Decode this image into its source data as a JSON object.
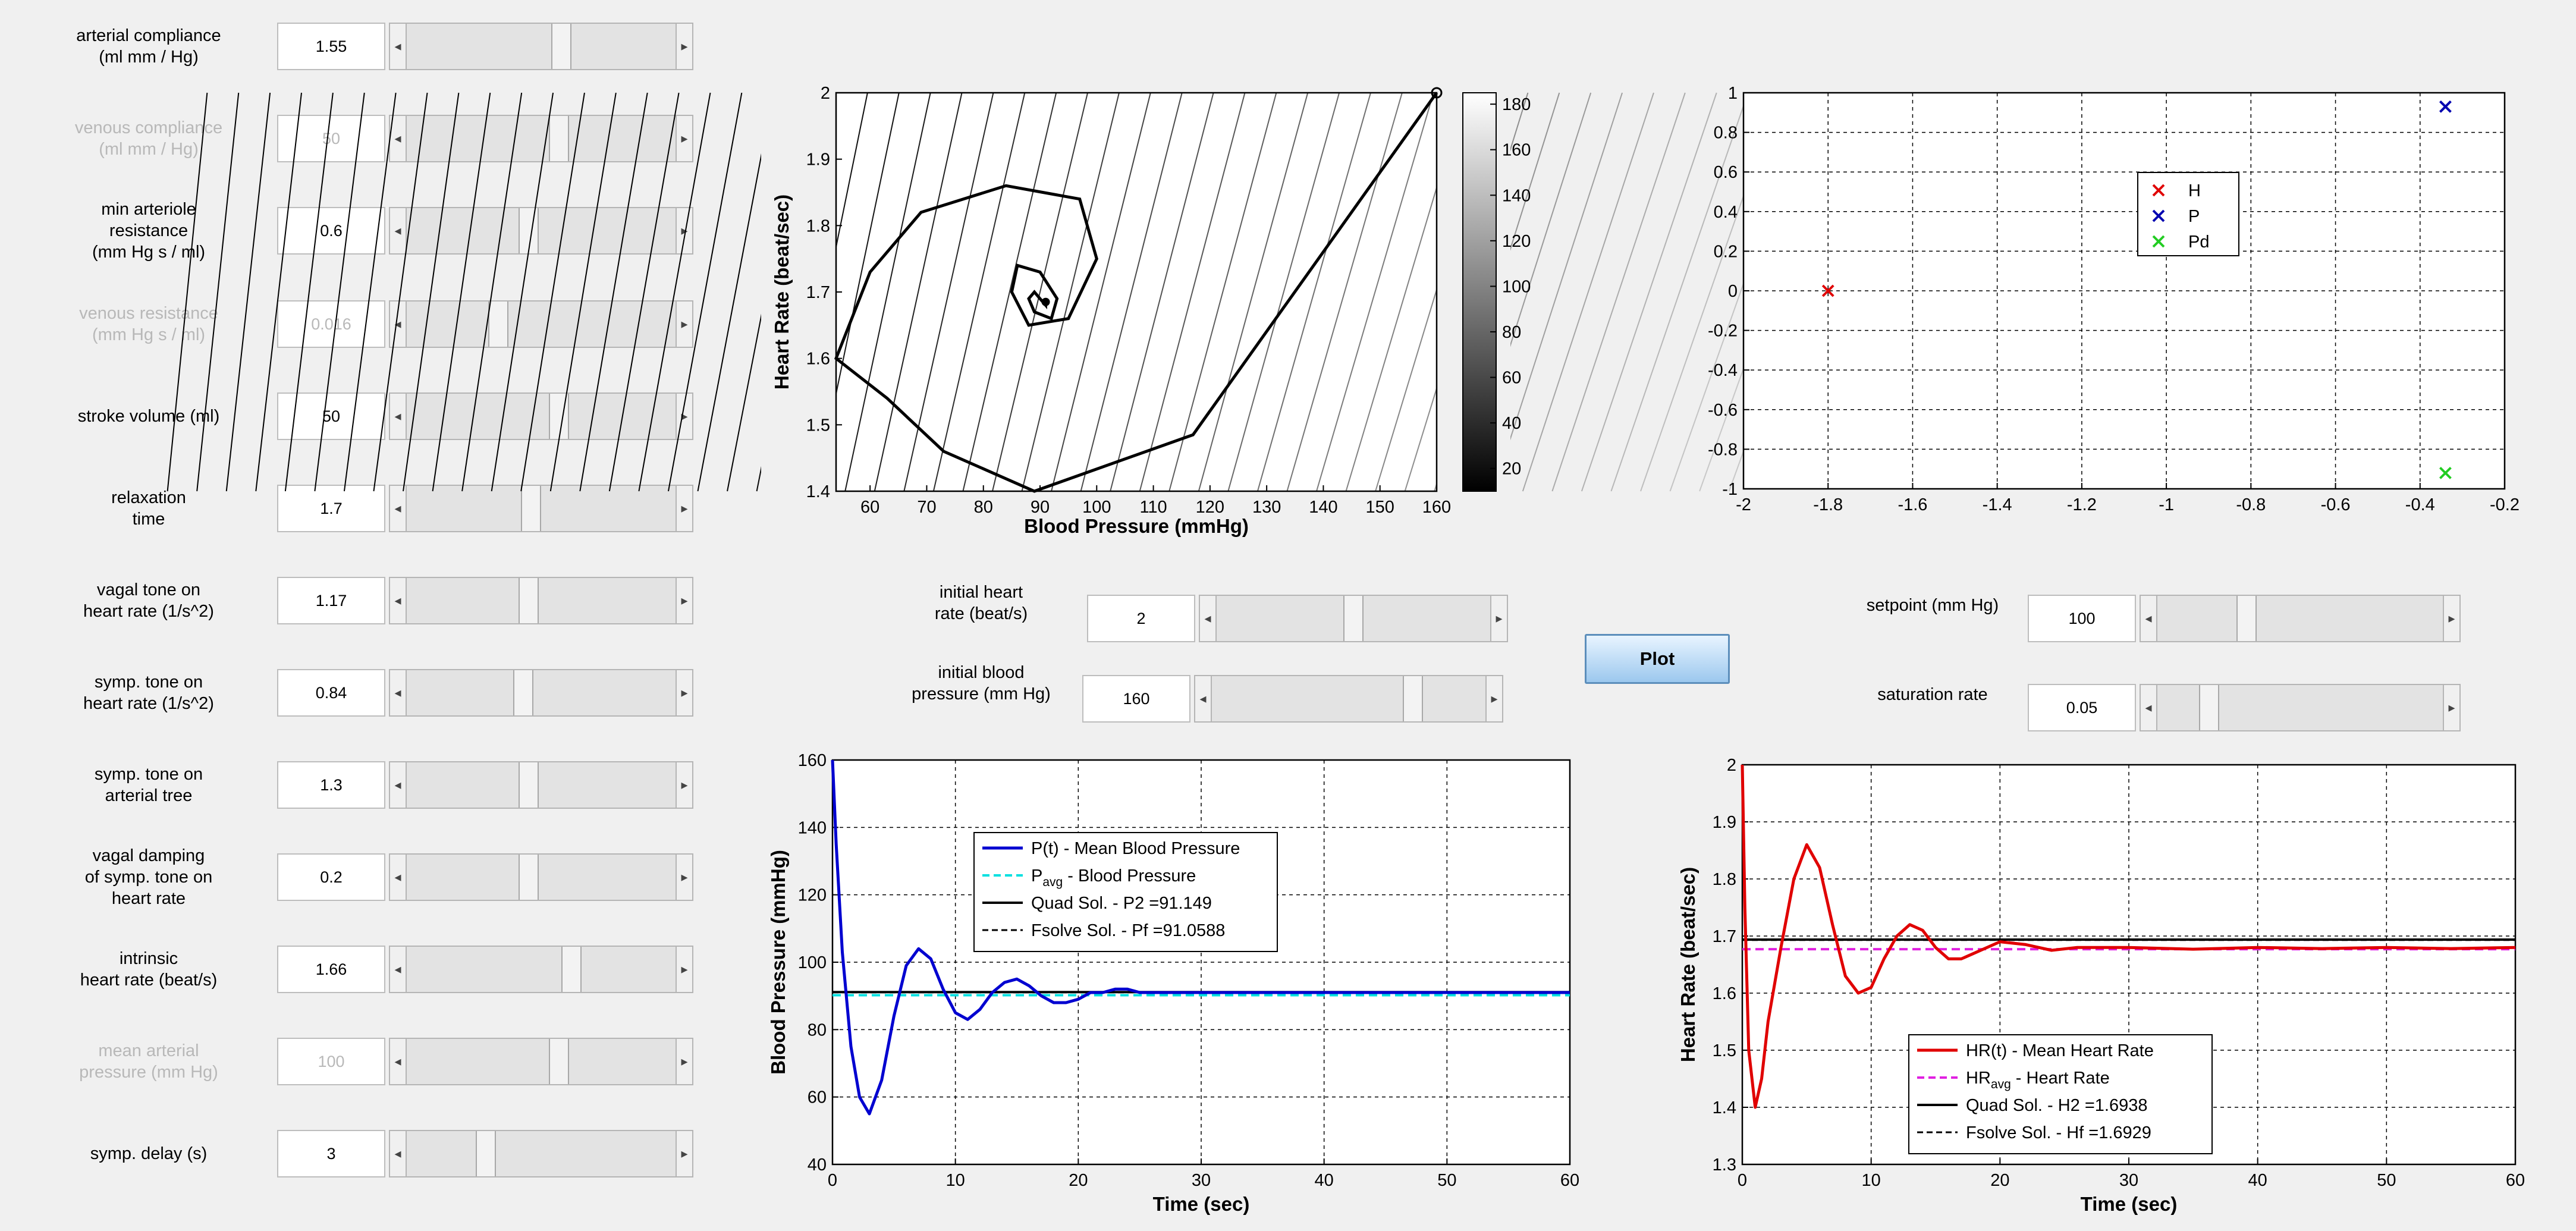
{
  "left_params": [
    {
      "label": [
        "arterial compliance",
        "(ml mm / Hg)"
      ],
      "value": "1.55",
      "enabled": true,
      "thumb": 0.58
    },
    {
      "label": [
        "venous compliance",
        "(ml mm / Hg)"
      ],
      "value": "50",
      "enabled": false,
      "thumb": 0.57
    },
    {
      "label": [
        "min arteriole",
        "resistance",
        "(mm Hg s / ml)"
      ],
      "value": "0.6",
      "enabled": true,
      "thumb": 0.45
    },
    {
      "label": [
        "venous resistance",
        "(mm Hg s / ml)"
      ],
      "value": "0.016",
      "enabled": false,
      "thumb": 0.33
    },
    {
      "label": [
        "stroke volume (ml)"
      ],
      "value": "50",
      "enabled": true,
      "thumb": 0.57
    },
    {
      "label": [
        "relaxation",
        "time"
      ],
      "value": "1.7",
      "enabled": true,
      "thumb": 0.46
    },
    {
      "label": [
        "vagal tone on",
        "heart rate (1/s^2)"
      ],
      "value": "1.17",
      "enabled": true,
      "thumb": 0.45
    },
    {
      "label": [
        "symp. tone on",
        "heart rate (1/s^2)"
      ],
      "value": "0.84",
      "enabled": true,
      "thumb": 0.43
    },
    {
      "label": [
        "symp. tone on",
        "arterial tree"
      ],
      "value": "1.3",
      "enabled": true,
      "thumb": 0.45
    },
    {
      "label": [
        "vagal damping",
        "of symp. tone on",
        "heart rate"
      ],
      "value": "0.2",
      "enabled": true,
      "thumb": 0.45
    },
    {
      "label": [
        "intrinsic",
        "heart rate (beat/s)"
      ],
      "value": "1.66",
      "enabled": true,
      "thumb": 0.62
    },
    {
      "label": [
        "mean arterial",
        "pressure (mm Hg)"
      ],
      "value": "100",
      "enabled": false,
      "thumb": 0.57
    },
    {
      "label": [
        "symp. delay (s)"
      ],
      "value": "3",
      "enabled": true,
      "thumb": 0.28
    }
  ],
  "mid_params": [
    {
      "label": [
        "initial heart",
        "rate (beat/s)"
      ],
      "value": "2",
      "thumb": 0.5
    },
    {
      "label": [
        "initial blood",
        "pressure (mm Hg)"
      ],
      "value": "160",
      "thumb": 0.75
    }
  ],
  "right_params": [
    {
      "label": [
        "setpoint (mm Hg)"
      ],
      "value": "100",
      "thumb": 0.3
    },
    {
      "label": [
        "saturation rate"
      ],
      "value": "0.05",
      "thumb": 0.16
    }
  ],
  "plot_button": "Plot",
  "phase_plot": {
    "xlabel": "Blood Pressure (mmHg)",
    "ylabel": "Heart Rate (beat/sec)",
    "xticks": [
      "60",
      "70",
      "80",
      "90",
      "100",
      "110",
      "120",
      "130",
      "140",
      "150",
      "160"
    ],
    "yticks": [
      "1.4",
      "1.5",
      "1.6",
      "1.7",
      "1.8",
      "1.9",
      "2"
    ],
    "colorbar_ticks": [
      "20",
      "40",
      "60",
      "80",
      "100",
      "120",
      "140",
      "160",
      "180"
    ]
  },
  "roots_plot": {
    "xticks": [
      "-2",
      "-1.8",
      "-1.6",
      "-1.4",
      "-1.2",
      "-1",
      "-0.8",
      "-0.6",
      "-0.4",
      "-0.2"
    ],
    "yticks": [
      "-1",
      "-0.8",
      "-0.6",
      "-0.4",
      "-0.2",
      "0",
      "0.2",
      "0.4",
      "0.6",
      "0.8",
      "1"
    ],
    "legend": [
      "H",
      "P",
      "Pd"
    ],
    "colors": {
      "H": "#e00000",
      "P": "#0000b0",
      "Pd": "#22cc22"
    }
  },
  "bp_plot": {
    "xlabel": "Time (sec)",
    "ylabel": "Blood Pressure (mmHg)",
    "xticks": [
      "0",
      "10",
      "20",
      "30",
      "40",
      "50",
      "60"
    ],
    "yticks": [
      "40",
      "60",
      "80",
      "100",
      "120",
      "140",
      "160"
    ],
    "legend": {
      "l1": "P(t) - Mean Blood Pressure",
      "l2a": "P",
      "l2sub": "avg",
      "l2b": " - Blood Pressure",
      "l3": "Quad Sol. - P2 =91.149",
      "l4": "Fsolve Sol. - Pf =91.0588"
    }
  },
  "hr_plot": {
    "xlabel": "Time (sec)",
    "ylabel": "Heart Rate (beat/sec)",
    "xticks": [
      "0",
      "10",
      "20",
      "30",
      "40",
      "50",
      "60"
    ],
    "yticks": [
      "1.3",
      "1.4",
      "1.5",
      "1.6",
      "1.7",
      "1.8",
      "1.9",
      "2"
    ],
    "legend": {
      "l1": "HR(t) - Mean Heart Rate",
      "l2a": "HR",
      "l2sub": "avg",
      "l2b": " - Heart Rate",
      "l3": "Quad Sol. - H2 =1.6938",
      "l4": "Fsolve Sol. - Hf =1.6929"
    }
  },
  "chart_data": [
    {
      "type": "line",
      "chart": "phase-portrait",
      "xlabel": "Blood Pressure (mmHg)",
      "ylabel": "Heart Rate (beat/sec)",
      "xlim": [
        54,
        160
      ],
      "ylim": [
        1.4,
        2
      ],
      "series": [
        {
          "x": [
            160,
            117,
            89,
            73,
            63,
            54,
            60,
            69,
            84,
            97,
            100,
            95,
            88,
            85,
            86,
            90,
            93,
            92,
            89,
            88,
            89,
            90,
            91,
            91,
            91
          ],
          "y": [
            2,
            1.485,
            1.4,
            1.46,
            1.54,
            1.6,
            1.73,
            1.82,
            1.86,
            1.84,
            1.75,
            1.66,
            1.65,
            1.7,
            1.74,
            1.73,
            1.69,
            1.66,
            1.67,
            1.69,
            1.7,
            1.69,
            1.68,
            1.68,
            1.69
          ]
        }
      ],
      "colorbar": {
        "min": 10,
        "max": 185
      }
    },
    {
      "type": "scatter",
      "chart": "roots",
      "xlim": [
        -2,
        -0.2
      ],
      "ylim": [
        -1,
        1
      ],
      "series": [
        {
          "name": "H",
          "x": [
            -1.8
          ],
          "y": [
            0
          ]
        },
        {
          "name": "P",
          "x": [
            -0.34
          ],
          "y": [
            0.93
          ]
        },
        {
          "name": "Pd",
          "x": [
            -0.34
          ],
          "y": [
            -0.92
          ]
        }
      ],
      "legend": "top-center"
    },
    {
      "type": "line",
      "chart": "blood-pressure",
      "xlabel": "Time (sec)",
      "ylabel": "Blood Pressure (mmHg)",
      "xlim": [
        0,
        60
      ],
      "ylim": [
        40,
        160
      ],
      "series": [
        {
          "name": "P(t) - Mean Blood Pressure",
          "x": [
            0,
            0.3,
            0.8,
            1.5,
            2.2,
            3,
            4,
            5,
            6,
            7,
            8,
            9,
            10,
            11,
            12,
            13,
            14,
            15,
            16,
            17,
            18,
            19,
            20,
            21,
            22,
            23,
            24,
            25,
            26,
            28,
            30,
            35,
            40,
            45,
            50,
            55,
            60
          ],
          "y": [
            160,
            135,
            103,
            75,
            60,
            55,
            65,
            84,
            99,
            104,
            101,
            92,
            85,
            83,
            86,
            91,
            94,
            95,
            93,
            90,
            88,
            88,
            89,
            91,
            91,
            92,
            92,
            91,
            91,
            91,
            91,
            91,
            91,
            91,
            91,
            91,
            91
          ]
        },
        {
          "name": "Pavg - Blood Pressure",
          "x": [
            0,
            60
          ],
          "y": [
            90.2,
            90.2
          ]
        },
        {
          "name": "Quad Sol. - P2 =91.149",
          "x": [
            0,
            60
          ],
          "y": [
            91.149,
            91.149
          ]
        },
        {
          "name": "Fsolve Sol. - Pf =91.0588",
          "x": [
            0,
            60
          ],
          "y": [
            91.0588,
            91.0588
          ]
        }
      ],
      "legend": "top-center"
    },
    {
      "type": "line",
      "chart": "heart-rate",
      "xlabel": "Time (sec)",
      "ylabel": "Heart Rate (beat/sec)",
      "xlim": [
        0,
        60
      ],
      "ylim": [
        1.3,
        2
      ],
      "series": [
        {
          "name": "HR(t) - Mean Heart Rate",
          "x": [
            0,
            0.2,
            0.5,
            1,
            1.5,
            2,
            3,
            4,
            5,
            6,
            7,
            8,
            9,
            10,
            11,
            12,
            13,
            14,
            15,
            16,
            17,
            18,
            20,
            22,
            24,
            26,
            28,
            30,
            35,
            40,
            45,
            50,
            55,
            60
          ],
          "y": [
            2,
            1.75,
            1.5,
            1.4,
            1.45,
            1.55,
            1.68,
            1.8,
            1.86,
            1.82,
            1.72,
            1.63,
            1.6,
            1.61,
            1.66,
            1.7,
            1.72,
            1.71,
            1.68,
            1.66,
            1.66,
            1.67,
            1.69,
            1.685,
            1.675,
            1.68,
            1.68,
            1.68,
            1.677,
            1.68,
            1.678,
            1.68,
            1.678,
            1.68
          ]
        },
        {
          "name": "HRavg - Heart Rate",
          "x": [
            0,
            60
          ],
          "y": [
            1.677,
            1.677
          ]
        },
        {
          "name": "Quad Sol. - H2 =1.6938",
          "x": [
            0,
            60
          ],
          "y": [
            1.6938,
            1.6938
          ]
        },
        {
          "name": "Fsolve Sol. - Hf =1.6929",
          "x": [
            0,
            60
          ],
          "y": [
            1.6929,
            1.6929
          ]
        }
      ],
      "legend": "bottom-center"
    }
  ]
}
